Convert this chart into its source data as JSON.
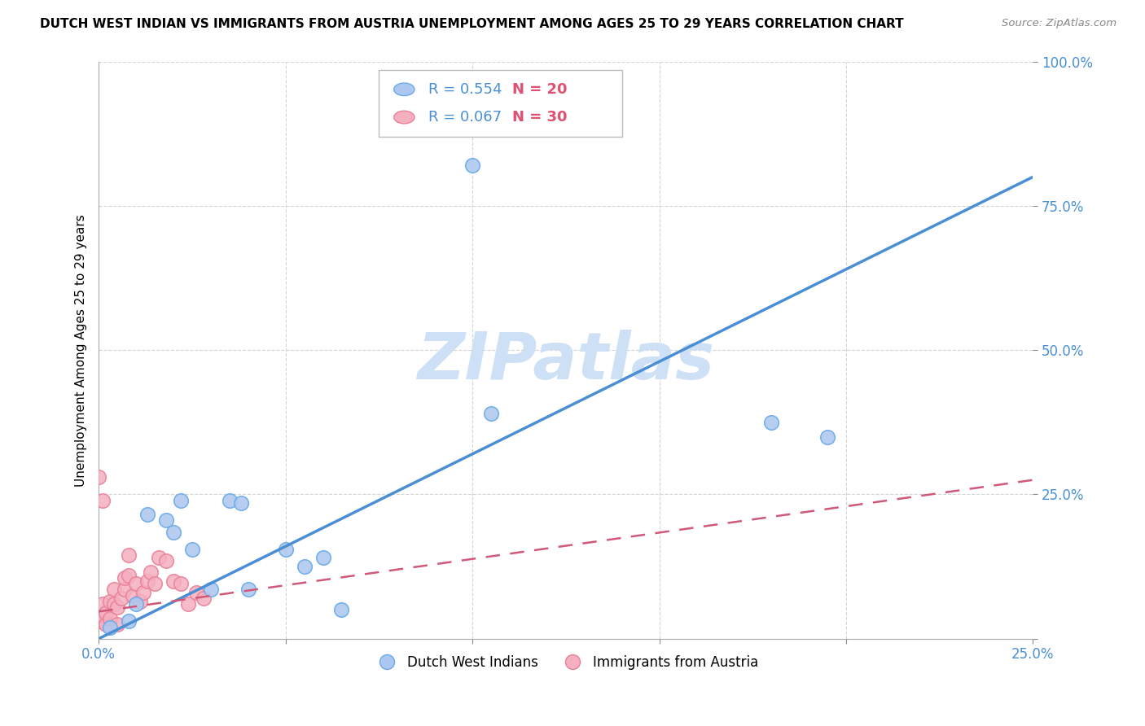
{
  "title": "DUTCH WEST INDIAN VS IMMIGRANTS FROM AUSTRIA UNEMPLOYMENT AMONG AGES 25 TO 29 YEARS CORRELATION CHART",
  "source": "Source: ZipAtlas.com",
  "ylabel": "Unemployment Among Ages 25 to 29 years",
  "xmin": 0.0,
  "xmax": 0.25,
  "ymin": 0.0,
  "ymax": 1.0,
  "blue_R": 0.554,
  "blue_N": 20,
  "pink_R": 0.067,
  "pink_N": 30,
  "blue_scatter_x": [
    0.003,
    0.008,
    0.01,
    0.013,
    0.018,
    0.02,
    0.022,
    0.025,
    0.03,
    0.035,
    0.038,
    0.04,
    0.05,
    0.055,
    0.06,
    0.065,
    0.1,
    0.105,
    0.18,
    0.195
  ],
  "blue_scatter_y": [
    0.02,
    0.03,
    0.06,
    0.215,
    0.205,
    0.185,
    0.24,
    0.155,
    0.085,
    0.24,
    0.235,
    0.085,
    0.155,
    0.125,
    0.14,
    0.05,
    0.82,
    0.39,
    0.375,
    0.35
  ],
  "pink_scatter_x": [
    0.0,
    0.001,
    0.001,
    0.002,
    0.002,
    0.003,
    0.003,
    0.004,
    0.004,
    0.005,
    0.005,
    0.006,
    0.007,
    0.007,
    0.008,
    0.008,
    0.009,
    0.01,
    0.011,
    0.012,
    0.013,
    0.014,
    0.015,
    0.016,
    0.018,
    0.02,
    0.022,
    0.024,
    0.026,
    0.028
  ],
  "pink_scatter_y": [
    0.03,
    0.04,
    0.06,
    0.025,
    0.045,
    0.035,
    0.065,
    0.06,
    0.085,
    0.025,
    0.055,
    0.07,
    0.085,
    0.105,
    0.11,
    0.145,
    0.075,
    0.095,
    0.065,
    0.08,
    0.1,
    0.115,
    0.095,
    0.14,
    0.135,
    0.1,
    0.095,
    0.06,
    0.08,
    0.07
  ],
  "pink_outlier_x": [
    0.0
  ],
  "pink_outlier_y": [
    0.28
  ],
  "pink_outlier2_x": [
    0.001
  ],
  "pink_outlier2_y": [
    0.24
  ],
  "blue_color": "#adc8f0",
  "blue_edge_color": "#6aaae8",
  "blue_line_color": "#4a8fd4",
  "pink_color": "#f5afc0",
  "pink_edge_color": "#e88098",
  "pink_line_color": "#d05878",
  "watermark_color": "#cde0f5",
  "grid_color": "#d0d0d0",
  "tick_color": "#4a8fd4",
  "blue_line_y0": 0.0,
  "blue_line_y1": 0.8,
  "pink_line_y0": 0.047,
  "pink_line_y1": 0.275,
  "ytick_positions": [
    0.0,
    0.25,
    0.5,
    0.75,
    1.0
  ],
  "ytick_labels": [
    "",
    "25.0%",
    "50.0%",
    "75.0%",
    "100.0%"
  ],
  "xtick_positions": [
    0.0,
    0.05,
    0.1,
    0.15,
    0.2,
    0.25
  ],
  "xtick_labels": [
    "0.0%",
    "",
    "",
    "",
    "",
    "25.0%"
  ],
  "legend_labels": [
    "Dutch West Indians",
    "Immigrants from Austria"
  ],
  "scatter_size": 160
}
